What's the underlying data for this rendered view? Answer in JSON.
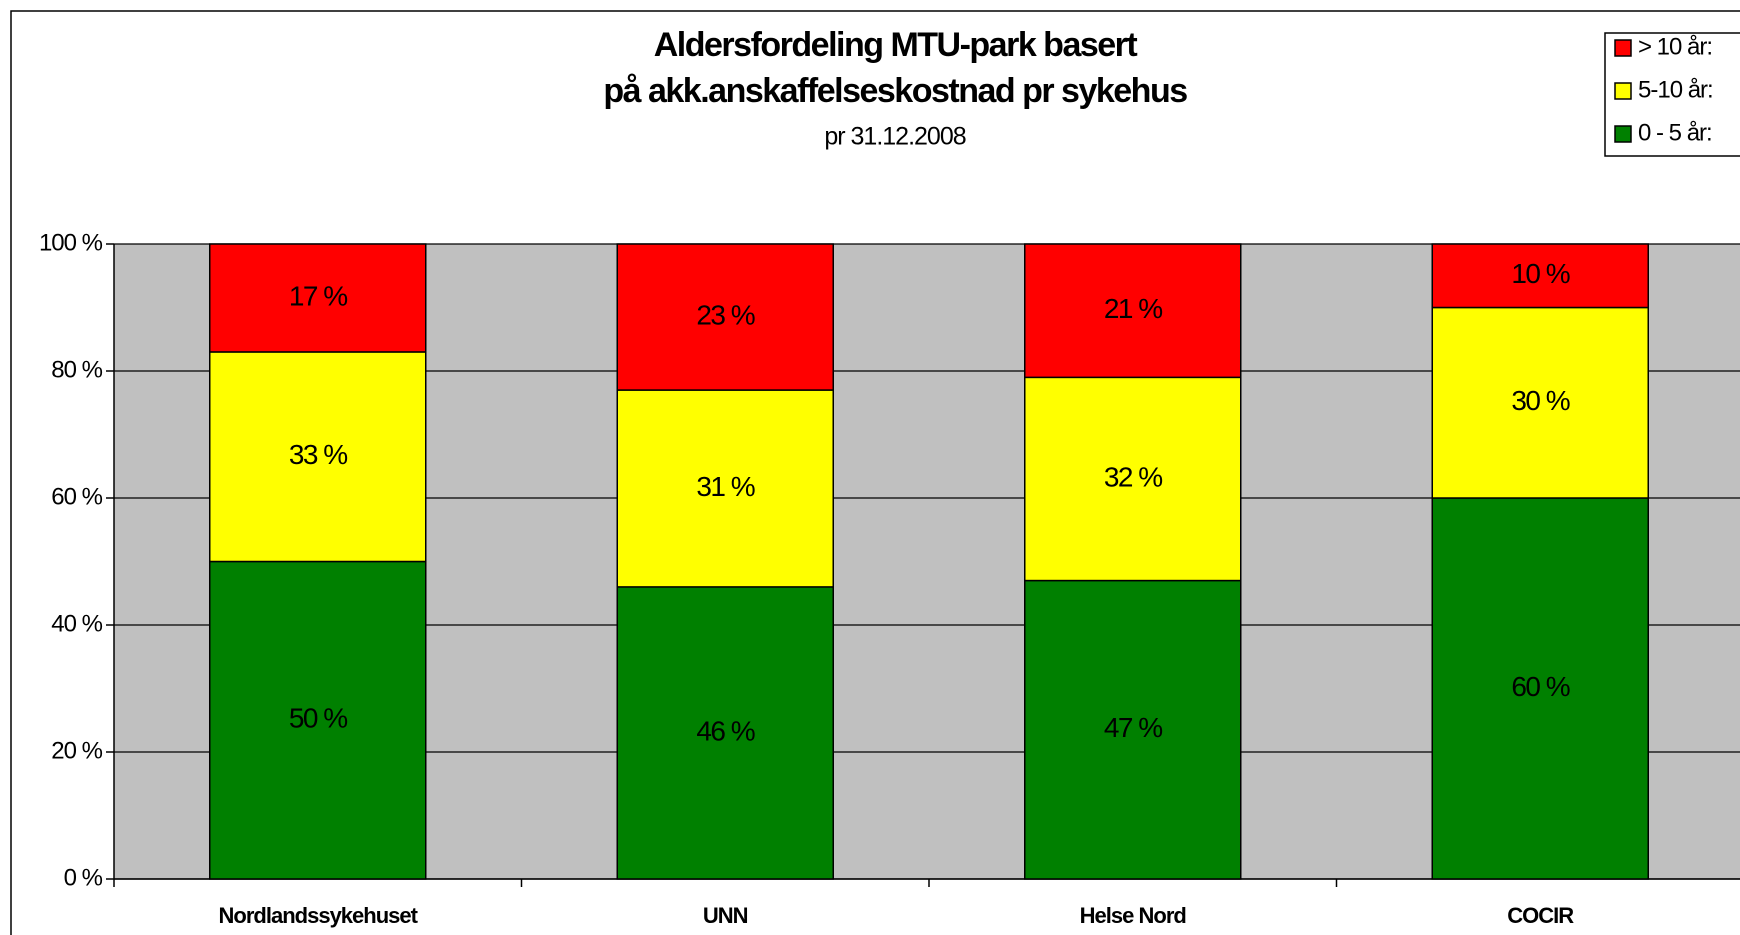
{
  "chart_data": {
    "type": "stacked_bar",
    "title": "Aldersfordeling MTU-park basert",
    "subtitle": "på akk.anskaffelseskostnad pr sykehus",
    "subtitle2": "pr 31.12.2008",
    "categories": [
      "Nordlandssykehuset",
      "UNN",
      "Helse Nord",
      "COCIR"
    ],
    "series": [
      {
        "name": "0 - 5 år:",
        "color": "#008000",
        "values": [
          50,
          46,
          47,
          60
        ],
        "value_labels": [
          "50 %",
          "46 %",
          "47 %",
          "60 %"
        ]
      },
      {
        "name": "5-10 år:",
        "color": "#ffff00",
        "values": [
          33,
          31,
          32,
          30
        ],
        "value_labels": [
          "33 %",
          "31 %",
          "32 %",
          "30 %"
        ]
      },
      {
        "name": "> 10 år:",
        "color": "#ff0000",
        "values": [
          17,
          23,
          21,
          10
        ],
        "value_labels": [
          "17 %",
          "23 %",
          "21 %",
          "10 %"
        ]
      }
    ],
    "ylim": [
      0,
      100
    ],
    "yticks": [
      {
        "value": 0,
        "label": "0 %"
      },
      {
        "value": 20,
        "label": "20 %"
      },
      {
        "value": 40,
        "label": "40 %"
      },
      {
        "value": 60,
        "label": "60 %"
      },
      {
        "value": 80,
        "label": "80 %"
      },
      {
        "value": 100,
        "label": "100 %"
      }
    ],
    "grid": true,
    "legend": "top-right",
    "background": "#c0c0c0"
  }
}
